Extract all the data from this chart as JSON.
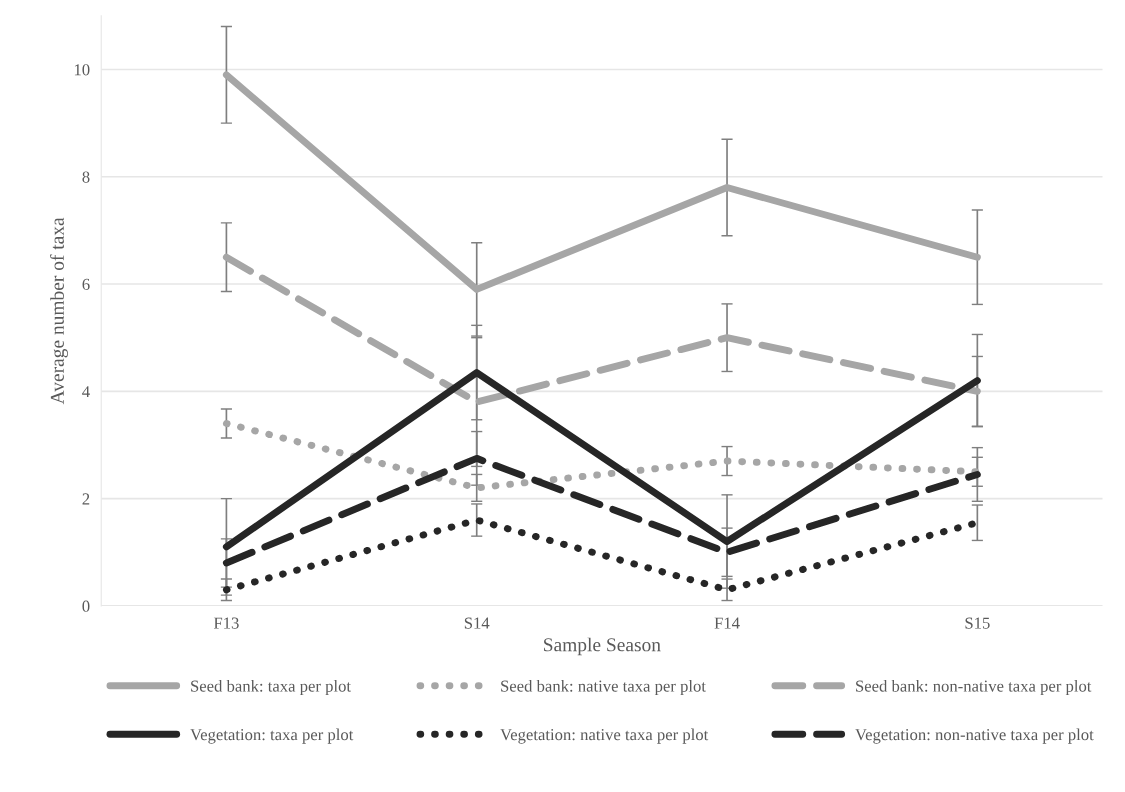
{
  "chart_data": {
    "type": "line",
    "xlabel": "Sample Season",
    "ylabel": "Average number of taxa",
    "categories": [
      "F13",
      "S14",
      "F14",
      "S15"
    ],
    "series": [
      {
        "name": "Seed bank: taxa per plot",
        "color": "#a6a6a6",
        "line_style": "solid",
        "values": [
          9.9,
          5.9,
          7.8,
          6.5
        ],
        "errors": [
          0.9,
          0.87,
          0.9,
          0.88
        ]
      },
      {
        "name": "Seed bank: native taxa per plot",
        "color": "#a6a6a6",
        "line_style": "dotted",
        "values": [
          3.4,
          2.2,
          2.7,
          2.5
        ],
        "errors": [
          0.27,
          0.25,
          0.27,
          0.27
        ]
      },
      {
        "name": "Seed bank: non-native taxa per plot",
        "color": "#a6a6a6",
        "line_style": "dashed",
        "values": [
          6.5,
          3.8,
          5.0,
          4.0
        ],
        "errors": [
          0.64,
          1.2,
          0.63,
          0.65
        ]
      },
      {
        "name": "Vegetation: taxa per plot",
        "color": "#262626",
        "line_style": "solid",
        "values": [
          1.1,
          4.35,
          1.2,
          4.2
        ],
        "errors": [
          0.9,
          0.88,
          0.87,
          0.86
        ]
      },
      {
        "name": "Vegetation: native taxa per plot",
        "color": "#262626",
        "line_style": "dotted",
        "values": [
          0.3,
          1.6,
          0.3,
          1.55
        ],
        "errors": [
          0.2,
          0.3,
          0.2,
          0.33
        ]
      },
      {
        "name": "Vegetation: non-native taxa per plot",
        "color": "#262626",
        "line_style": "dashed",
        "values": [
          0.8,
          2.75,
          1.0,
          2.45
        ],
        "errors": [
          0.45,
          0.5,
          0.45,
          0.5
        ]
      }
    ],
    "ylim": [
      0,
      11
    ],
    "yticks": [
      0,
      2,
      4,
      6,
      8,
      10
    ],
    "grid": "y",
    "legend": "bottom",
    "marker": "none"
  }
}
